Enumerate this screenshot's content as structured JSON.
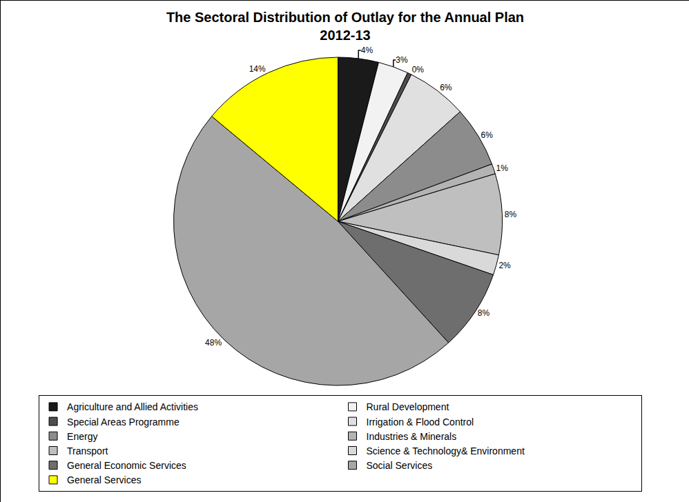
{
  "chart_data": {
    "type": "pie",
    "title": "The Sectoral Distribution of Outlay for the Annual Plan 2012-13",
    "categories": [
      "Agriculture and Allied Activities",
      "Rural Development",
      "Special Areas Programme",
      "Irrigation & Flood Control",
      "Energy",
      "Industries & Minerals",
      "Transport",
      "Science & Technology& Environment",
      "General Economic Services",
      "Social Services",
      "General Services"
    ],
    "values": [
      4,
      3,
      0.4,
      6,
      6,
      1,
      8,
      2,
      8,
      48,
      14
    ],
    "value_labels": [
      "4%",
      "3%",
      "0%",
      "6%",
      "6%",
      "1%",
      "8%",
      "2%",
      "8%",
      "48%",
      "14%"
    ],
    "colors": [
      "#1a1a1a",
      "#f2f2f2",
      "#4d4d4d",
      "#e0e0e0",
      "#8c8c8c",
      "#b3b3b3",
      "#bfbfbf",
      "#d9d9d9",
      "#6e6e6e",
      "#a6a6a6",
      "#ffff00"
    ],
    "data_labels": true,
    "legend": "bottom"
  }
}
